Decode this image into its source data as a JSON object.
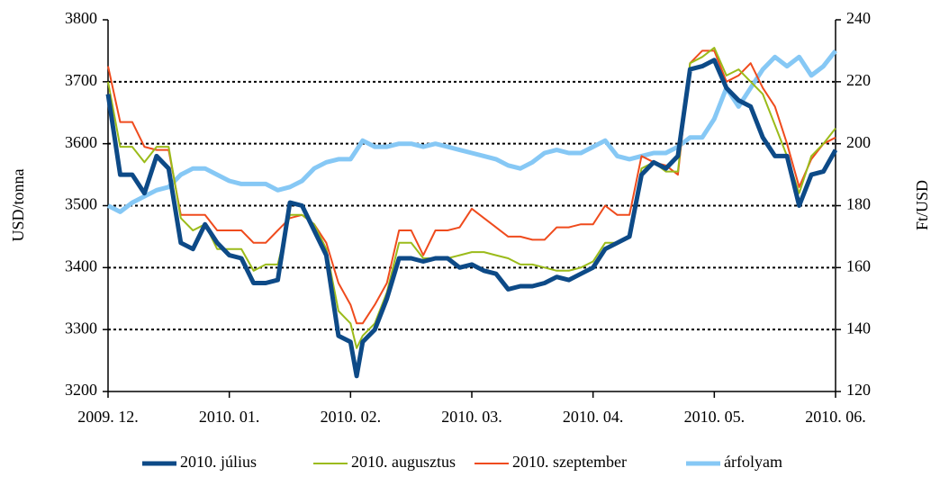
{
  "chart_data": {
    "type": "line",
    "y_label": "USD/tonna",
    "y2_label": "Ft/USD",
    "x": [
      0,
      0.1,
      0.2,
      0.3,
      0.4,
      0.5,
      0.6,
      0.7,
      0.8,
      0.9,
      1.0,
      1.1,
      1.2,
      1.3,
      1.4,
      1.5,
      1.6,
      1.7,
      1.8,
      1.9,
      2.0,
      2.05,
      2.1,
      2.2,
      2.3,
      2.4,
      2.5,
      2.6,
      2.7,
      2.8,
      2.9,
      3.0,
      3.1,
      3.2,
      3.3,
      3.4,
      3.5,
      3.6,
      3.7,
      3.8,
      3.9,
      4.0,
      4.1,
      4.2,
      4.3,
      4.4,
      4.5,
      4.6,
      4.7,
      4.8,
      4.9,
      5.0,
      5.1,
      5.2,
      5.3,
      5.4,
      5.5,
      5.6,
      5.7,
      5.8,
      5.9,
      6.0
    ],
    "xlim": [
      0,
      6
    ],
    "xticks": [
      {
        "value": 0,
        "label": "2009. 12."
      },
      {
        "value": 1,
        "label": "2010. 01."
      },
      {
        "value": 2,
        "label": "2010. 02."
      },
      {
        "value": 3,
        "label": "2010. 03."
      },
      {
        "value": 4,
        "label": "2010. 04."
      },
      {
        "value": 5,
        "label": "2010. 05."
      },
      {
        "value": 6,
        "label": "2010. 06."
      }
    ],
    "ylim": [
      3200,
      3800
    ],
    "yticks": [
      3200,
      3300,
      3400,
      3500,
      3600,
      3700,
      3800
    ],
    "y2lim": [
      120,
      240
    ],
    "y2ticks": [
      120,
      140,
      160,
      180,
      200,
      220,
      240
    ],
    "grid": true,
    "legend": "bottom",
    "series": [
      {
        "name": "2010. július",
        "color": "#0d4a87",
        "line_width": 5,
        "values": [
          3680,
          3550,
          3550,
          3520,
          3580,
          3560,
          3440,
          3430,
          3470,
          3440,
          3420,
          3415,
          3375,
          3375,
          3380,
          3505,
          3500,
          3460,
          3420,
          3290,
          3280,
          3225,
          3280,
          3300,
          3350,
          3415,
          3415,
          3410,
          3415,
          3415,
          3400,
          3405,
          3395,
          3390,
          3365,
          3370,
          3370,
          3375,
          3385,
          3380,
          3390,
          3400,
          3430,
          3440,
          3450,
          3550,
          3570,
          3560,
          3580,
          3720,
          3725,
          3735,
          3690,
          3670,
          3660,
          3610,
          3580,
          3580,
          3500,
          3550,
          3555,
          3590
        ]
      },
      {
        "name": "2010. augusztus",
        "color": "#9bbb1a",
        "line_width": 2,
        "values": [
          3700,
          3595,
          3595,
          3570,
          3595,
          3595,
          3480,
          3460,
          3470,
          3430,
          3430,
          3430,
          3395,
          3405,
          3405,
          3485,
          3485,
          3470,
          3430,
          3330,
          3310,
          3270,
          3290,
          3310,
          3360,
          3440,
          3440,
          3415,
          3415,
          3415,
          3420,
          3425,
          3425,
          3420,
          3415,
          3405,
          3405,
          3400,
          3395,
          3395,
          3400,
          3410,
          3440,
          3440,
          3450,
          3560,
          3570,
          3555,
          3555,
          3730,
          3740,
          3755,
          3710,
          3720,
          3700,
          3680,
          3630,
          3580,
          3520,
          3580,
          3600,
          3625
        ]
      },
      {
        "name": "2010. szeptember",
        "color": "#ef4b1d",
        "line_width": 2,
        "values": [
          3725,
          3635,
          3635,
          3595,
          3590,
          3590,
          3485,
          3485,
          3485,
          3460,
          3460,
          3460,
          3440,
          3440,
          3460,
          3480,
          3485,
          3470,
          3440,
          3375,
          3340,
          3310,
          3310,
          3340,
          3375,
          3460,
          3460,
          3420,
          3460,
          3460,
          3465,
          3495,
          3480,
          3465,
          3450,
          3450,
          3445,
          3445,
          3465,
          3465,
          3470,
          3470,
          3500,
          3485,
          3485,
          3580,
          3570,
          3565,
          3550,
          3730,
          3750,
          3750,
          3700,
          3710,
          3730,
          3690,
          3660,
          3600,
          3530,
          3575,
          3600,
          3610
        ]
      },
      {
        "name": "árfolyam",
        "color": "#86c8f5",
        "line_width": 5,
        "axis": "y2",
        "values": [
          180,
          178,
          181,
          183,
          185,
          186,
          190,
          192,
          192,
          190,
          188,
          187,
          187,
          187,
          185,
          186,
          188,
          192,
          194,
          195,
          195,
          198,
          201,
          199,
          199,
          200,
          200,
          199,
          200,
          199,
          198,
          197,
          196,
          195,
          193,
          192,
          194,
          197,
          198,
          197,
          197,
          199,
          201,
          196,
          195,
          196,
          197,
          197,
          199,
          202,
          202,
          208,
          218,
          212,
          218,
          224,
          228,
          225,
          228,
          222,
          225,
          230
        ]
      }
    ]
  }
}
